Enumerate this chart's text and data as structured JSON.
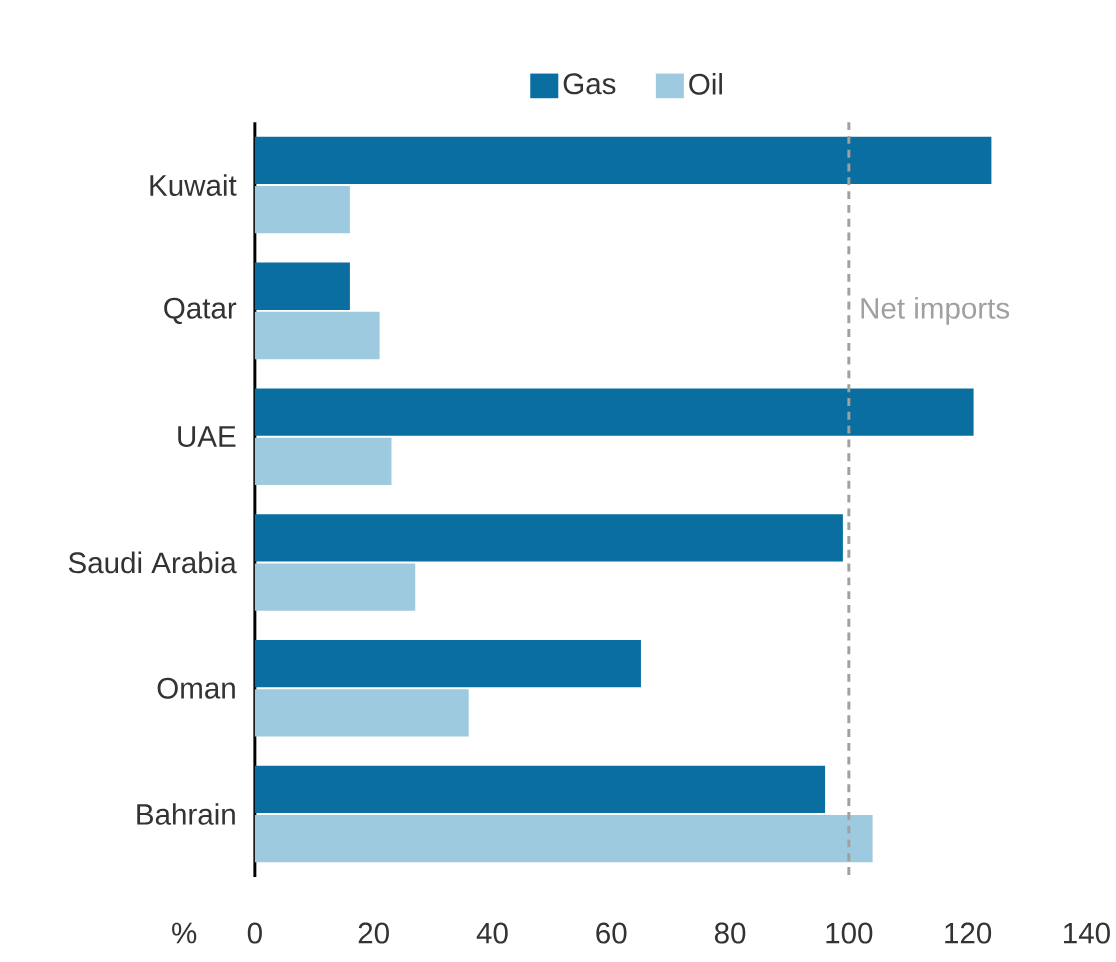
{
  "chart_data": {
    "type": "bar",
    "orientation": "horizontal",
    "categories": [
      "Kuwait",
      "Qatar",
      "UAE",
      "Saudi Arabia",
      "Oman",
      "Bahrain"
    ],
    "series": [
      {
        "name": "Gas",
        "color": "#0a6fa0",
        "values": [
          124,
          16,
          121,
          99,
          65,
          96
        ]
      },
      {
        "name": "Oil",
        "color": "#9ecadf",
        "values": [
          16,
          21,
          23,
          27,
          36,
          104
        ]
      }
    ],
    "xlim": [
      0,
      140
    ],
    "xticks": [
      0,
      20,
      40,
      60,
      80,
      100,
      120,
      140
    ],
    "xlabel": "%",
    "ref_lines": [
      {
        "axis": "x",
        "value": 100,
        "label": "Net imports",
        "color": "#a0a0a0",
        "line_style": "dashed"
      }
    ],
    "legend": "top"
  }
}
